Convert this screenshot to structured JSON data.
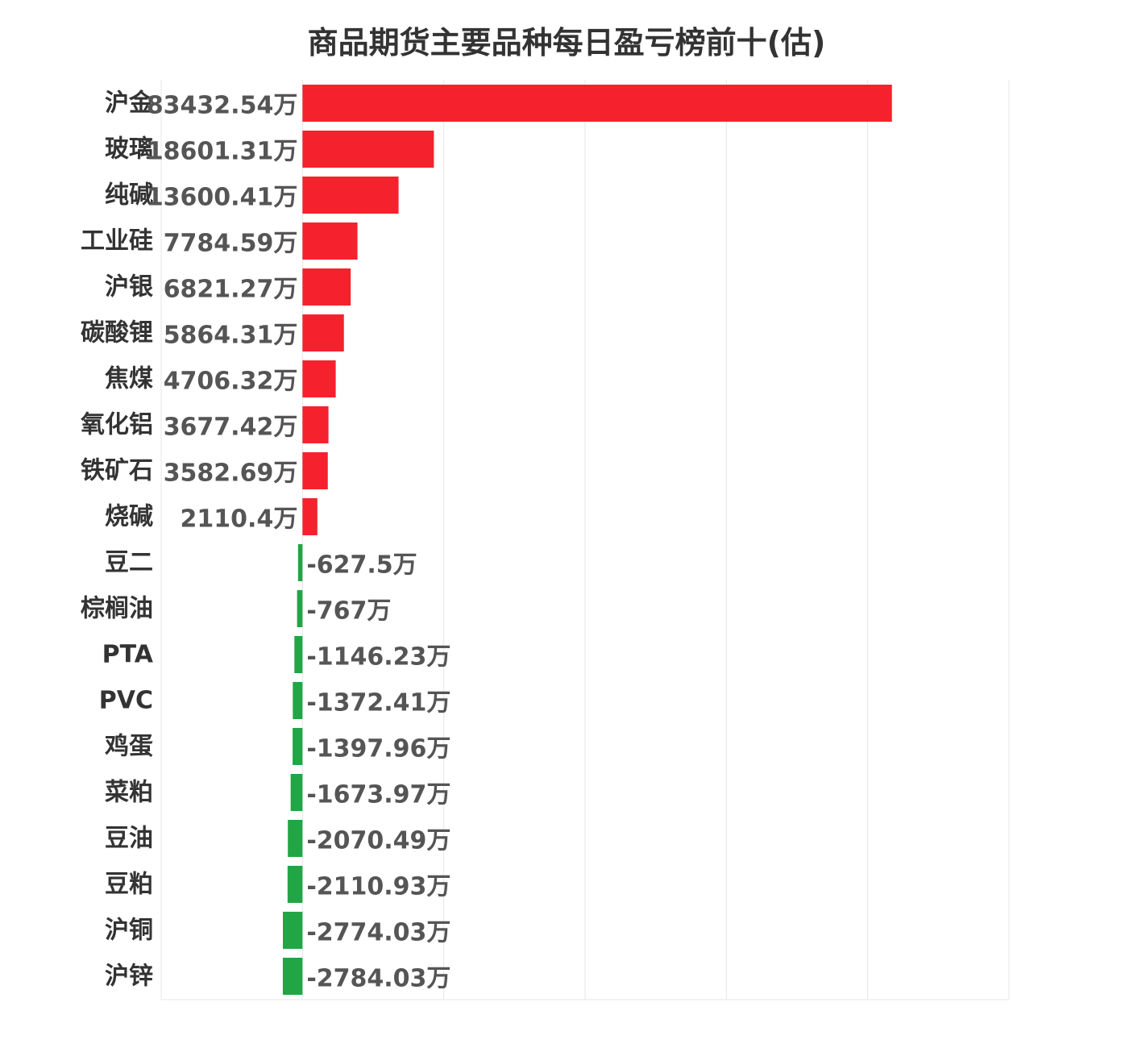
{
  "chart_data": {
    "type": "bar",
    "orientation": "horizontal",
    "title": "商品期货主要品种每日盈亏榜前十(估)",
    "unit": "万",
    "categories": [
      "沪金",
      "玻璃",
      "纯碱",
      "工业硅",
      "沪银",
      "碳酸锂",
      "焦煤",
      "氧化铝",
      "铁矿石",
      "烧碱",
      "豆二",
      "棕榈油",
      "PTA",
      "PVC",
      "鸡蛋",
      "菜粕",
      "豆油",
      "豆粕",
      "沪铜",
      "沪锌"
    ],
    "values": [
      83432.54,
      18601.31,
      13600.41,
      7784.59,
      6821.27,
      5864.31,
      4706.32,
      3677.42,
      3582.69,
      2110.4,
      -627.5,
      -767,
      -1146.23,
      -1372.41,
      -1397.96,
      -1673.97,
      -2070.49,
      -2110.93,
      -2774.03,
      -2784.03
    ],
    "value_labels": [
      "83432.54万",
      "18601.31万",
      "13600.41万",
      "7784.59万",
      "6821.27万",
      "5864.31万",
      "4706.32万",
      "3677.42万",
      "3582.69万",
      "2110.4万",
      "-627.5万",
      "-767万",
      "-1146.23万",
      "-1372.41万",
      "-1397.96万",
      "-1673.97万",
      "-2070.49万",
      "-2110.93万",
      "-2774.03万",
      "-2784.03万"
    ],
    "xlim": [
      -20000,
      100000
    ],
    "grid": true,
    "colors": {
      "positive": "#f5222d",
      "negative": "#22a544",
      "grid": "#e6e6e6"
    }
  }
}
